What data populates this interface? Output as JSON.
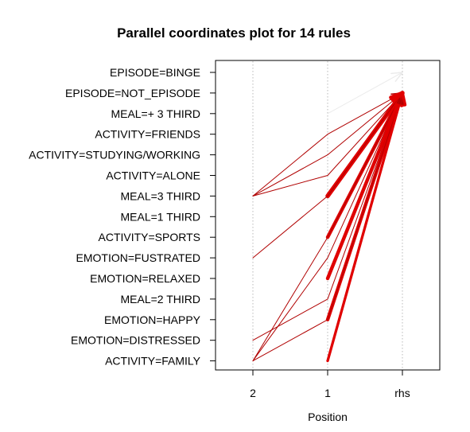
{
  "chart_data": {
    "type": "parallel-coordinates",
    "title": "Parallel coordinates plot for 14 rules",
    "xlabel": "Position",
    "x_ticks": [
      "2",
      "1",
      "rhs"
    ],
    "y_items": [
      "EPISODE=BINGE",
      "EPISODE=NOT_EPISODE",
      "MEAL=+  3 THIRD",
      "ACTIVITY=FRIENDS",
      "ACTIVITY=STUDYING/WORKING",
      "ACTIVITY=ALONE",
      "MEAL=3 THIRD",
      "MEAL=1 THIRD",
      "ACTIVITY=SPORTS",
      "EMOTION=FUSTRATED",
      "EMOTION=RELAXED",
      "MEAL=2 THIRD",
      "EMOTION=HAPPY",
      "EMOTION=DISTRESSED",
      "ACTIVITY=FAMILY"
    ],
    "rules": [
      {
        "items": [
          null,
          "MEAL=+  3 THIRD"
        ],
        "rhs": "EPISODE=BINGE",
        "weight": 1,
        "color": "#ebebeb"
      },
      {
        "items": [
          "MEAL=3 THIRD",
          "ACTIVITY=FRIENDS"
        ],
        "rhs": "EPISODE=NOT_EPISODE",
        "weight": 1,
        "color": "#b00000"
      },
      {
        "items": [
          "MEAL=3 THIRD",
          "ACTIVITY=STUDYING/WORKING"
        ],
        "rhs": "EPISODE=NOT_EPISODE",
        "weight": 1,
        "color": "#b00000"
      },
      {
        "items": [
          "MEAL=3 THIRD",
          "ACTIVITY=ALONE"
        ],
        "rhs": "EPISODE=NOT_EPISODE",
        "weight": 1,
        "color": "#b00000"
      },
      {
        "items": [
          null,
          "MEAL=3 THIRD"
        ],
        "rhs": "EPISODE=NOT_EPISODE",
        "weight": 5,
        "color": "#e00000"
      },
      {
        "items": [
          "EMOTION=FUSTRATED",
          "MEAL=3 THIRD"
        ],
        "rhs": "EPISODE=NOT_EPISODE",
        "weight": 1,
        "color": "#b00000"
      },
      {
        "items": [
          null,
          "ACTIVITY=SPORTS"
        ],
        "rhs": "EPISODE=NOT_EPISODE",
        "weight": 4,
        "color": "#e00000"
      },
      {
        "items": [
          "ACTIVITY=FAMILY",
          "ACTIVITY=SPORTS"
        ],
        "rhs": "EPISODE=NOT_EPISODE",
        "weight": 1,
        "color": "#b00000"
      },
      {
        "items": [
          "ACTIVITY=FAMILY",
          "EMOTION=FUSTRATED"
        ],
        "rhs": "EPISODE=NOT_EPISODE",
        "weight": 1,
        "color": "#b00000"
      },
      {
        "items": [
          null,
          "EMOTION=RELAXED"
        ],
        "rhs": "EPISODE=NOT_EPISODE",
        "weight": 4,
        "color": "#e00000"
      },
      {
        "items": [
          "EMOTION=DISTRESSED",
          "MEAL=2 THIRD"
        ],
        "rhs": "EPISODE=NOT_EPISODE",
        "weight": 1,
        "color": "#b00000"
      },
      {
        "items": [
          null,
          "EMOTION=HAPPY"
        ],
        "rhs": "EPISODE=NOT_EPISODE",
        "weight": 4,
        "color": "#e00000"
      },
      {
        "items": [
          "ACTIVITY=FAMILY",
          "EMOTION=HAPPY"
        ],
        "rhs": "EPISODE=NOT_EPISODE",
        "weight": 1,
        "color": "#b00000"
      },
      {
        "items": [
          null,
          "ACTIVITY=FAMILY"
        ],
        "rhs": "EPISODE=NOT_EPISODE",
        "weight": 3,
        "color": "#e00000"
      }
    ],
    "grid": "dotted vertical lines at each position",
    "legend": "none"
  }
}
